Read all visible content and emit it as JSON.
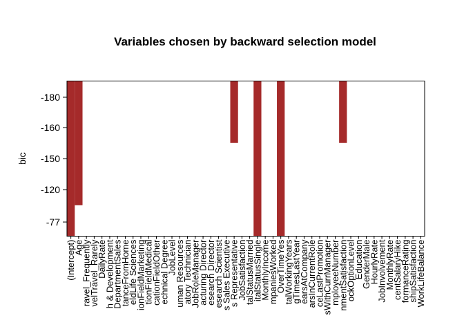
{
  "chart_data": {
    "type": "heatmap",
    "title": "Variables chosen by backward selection model",
    "ylabel": "bic",
    "y_ticks": [
      "-180",
      "-160",
      "-150",
      "-120",
      "-77"
    ],
    "variables": [
      "(Intercept)",
      "Age",
      "BusinessTravelTravel_Frequently",
      "BusinessTravelTravel_Rarely",
      "DailyRate",
      "DepartmentResearch & Development",
      "DepartmentSales",
      "DistanceFromHome",
      "EducationFieldLife Sciences",
      "EducationFieldMarketing",
      "EducationFieldMedical",
      "EducationFieldOther",
      "EducationFieldTechnical Degree",
      "JobLevel",
      "JobRoleHuman Resources",
      "JobRoleLaboratory Technician",
      "JobRoleManager",
      "JobRoleManufacturing Director",
      "JobRoleResearch Director",
      "JobRoleResearch Scientist",
      "JobRoleSales Executive",
      "JobRoleSales Representative",
      "JobSatisfaction",
      "MaritalStatusMarried",
      "MaritalStatusSingle",
      "MonthlyIncome",
      "NumCompaniesWorked",
      "OverTimeYes",
      "TotalWorkingYears",
      "TrainingTimesLastYear",
      "YearsAtCompany",
      "YearsInCurrentRole",
      "YearsSinceLastPromotion",
      "YearsWithCurrManager",
      "EmployeeNumber",
      "EnvironmentSatisfaction",
      "StockOptionLevel",
      "Education",
      "GenderMale",
      "HourlyRate",
      "JobInvolvement",
      "MonthlyRate",
      "PercentSalaryHike",
      "PerformanceRating",
      "RelationshipSatisfaction",
      "WorkLifeBalance"
    ],
    "x_tick_labels": [
      "(Intercept)",
      "Age",
      "ravel_Frequently",
      "velTravel_Rarely",
      "DailyRate",
      "h & Development",
      "DepartmentSales",
      "tanceFromHome",
      "eldLife Sciences",
      "ionFieldMarketing",
      "tionFieldMedical",
      "cationFieldOther",
      "echnical Degree",
      "JobLevel",
      "uman Resources",
      "atory Technician",
      "JobRoleManager",
      "acturing Director",
      "esearch Director",
      "esearch Scientist",
      "s Sales Executive",
      "s Representative",
      "JobSatisfaction",
      "talStatusMarried",
      "italStatusSingle",
      "MonthlyIncome",
      "mpaniesWorked",
      "OverTimeYes",
      "talWorkingYears",
      "gTimesLastYear",
      "earsAtCompany",
      "arsInCurrentRole",
      "ceLastPromotion",
      "sWithCurrManager",
      "mployeeNumber",
      "nmentSatisfaction",
      "ockOptionLevel",
      "Education",
      "GenderMale",
      "HourlyRate",
      "JobInvolvement",
      "MonthlyRate",
      "centSalaryHike",
      "formanceRating",
      "shipSatisfaction",
      "WorkLifeBalance"
    ],
    "models": [
      {
        "bic": "-180",
        "selected": [
          "(Intercept)",
          "Age",
          "JobRoleSales Representative",
          "MaritalStatusSingle",
          "OverTimeYes",
          "EnvironmentSatisfaction"
        ]
      },
      {
        "bic": "-160",
        "selected": [
          "(Intercept)",
          "Age",
          "JobRoleSales Representative",
          "MaritalStatusSingle",
          "OverTimeYes",
          "EnvironmentSatisfaction"
        ]
      },
      {
        "bic": "-150",
        "selected": [
          "(Intercept)",
          "Age",
          "MaritalStatusSingle",
          "OverTimeYes"
        ]
      },
      {
        "bic": "-120",
        "selected": [
          "(Intercept)",
          "MaritalStatusSingle",
          "OverTimeYes"
        ]
      },
      {
        "bic": "-77",
        "selected": [
          "(Intercept)",
          "OverTimeYes"
        ]
      }
    ],
    "colors": {
      "selected": "#a52a2a",
      "unselected": "#ffffff",
      "frame": "#000000"
    }
  }
}
